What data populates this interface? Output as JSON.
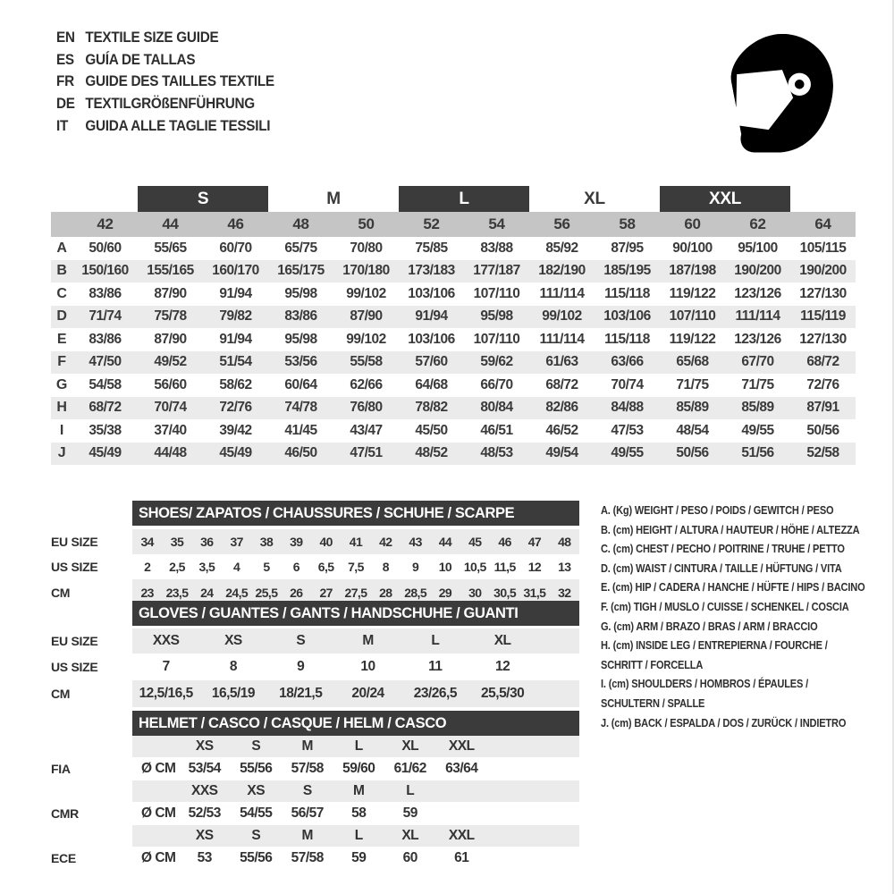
{
  "colors": {
    "bar_dark": "#3b3b3b",
    "column_band": "#c5c5c5",
    "stripe": "#ebebeb",
    "text": "#373737"
  },
  "header": {
    "languages": [
      {
        "code": "EN",
        "title": "TEXTILE SIZE GUIDE"
      },
      {
        "code": "ES",
        "title": "GUÍA DE TALLAS"
      },
      {
        "code": "FR",
        "title": "GUIDE DES TAILLES TEXTILE"
      },
      {
        "code": "DE",
        "title": "TEXTILGRÖßENFÜHRUNG"
      },
      {
        "code": "IT",
        "title": "GUIDA ALLE TAGLIE TESSILI"
      }
    ],
    "icon": "helmet-icon"
  },
  "textile_table": {
    "bands": [
      {
        "label": "S",
        "start": 2,
        "span": 2,
        "boxed": true
      },
      {
        "label": "M",
        "start": 4,
        "span": 2,
        "boxed": false
      },
      {
        "label": "L",
        "start": 6,
        "span": 2,
        "boxed": true
      },
      {
        "label": "XL",
        "start": 8,
        "span": 2,
        "boxed": false
      },
      {
        "label": "XXL",
        "start": 10,
        "span": 2,
        "boxed": true
      }
    ],
    "columns": [
      "42",
      "44",
      "46",
      "48",
      "50",
      "52",
      "54",
      "56",
      "58",
      "60",
      "62",
      "64"
    ],
    "rows": [
      {
        "label": "A",
        "values": [
          "50/60",
          "55/65",
          "60/70",
          "65/75",
          "70/80",
          "75/85",
          "83/88",
          "85/92",
          "87/95",
          "90/100",
          "95/100",
          "105/115"
        ]
      },
      {
        "label": "B",
        "values": [
          "150/160",
          "155/165",
          "160/170",
          "165/175",
          "170/180",
          "173/183",
          "177/187",
          "182/190",
          "185/195",
          "187/198",
          "190/200",
          "190/200"
        ]
      },
      {
        "label": "C",
        "values": [
          "83/86",
          "87/90",
          "91/94",
          "95/98",
          "99/102",
          "103/106",
          "107/110",
          "111/114",
          "115/118",
          "119/122",
          "123/126",
          "127/130"
        ]
      },
      {
        "label": "D",
        "values": [
          "71/74",
          "75/78",
          "79/82",
          "83/86",
          "87/90",
          "91/94",
          "95/98",
          "99/102",
          "103/106",
          "107/110",
          "111/114",
          "115/119"
        ]
      },
      {
        "label": "E",
        "values": [
          "83/86",
          "87/90",
          "91/94",
          "95/98",
          "99/102",
          "103/106",
          "107/110",
          "111/114",
          "115/118",
          "119/122",
          "123/126",
          "127/130"
        ]
      },
      {
        "label": "F",
        "values": [
          "47/50",
          "49/52",
          "51/54",
          "53/56",
          "55/58",
          "57/60",
          "59/62",
          "61/63",
          "63/66",
          "65/68",
          "67/70",
          "68/72"
        ]
      },
      {
        "label": "G",
        "values": [
          "54/58",
          "56/60",
          "58/62",
          "60/64",
          "62/66",
          "64/68",
          "66/70",
          "68/72",
          "70/74",
          "71/75",
          "71/75",
          "72/76"
        ]
      },
      {
        "label": "H",
        "values": [
          "68/72",
          "70/74",
          "72/76",
          "74/78",
          "76/80",
          "78/82",
          "80/84",
          "82/86",
          "84/88",
          "85/89",
          "85/89",
          "87/91"
        ]
      },
      {
        "label": "I",
        "values": [
          "35/38",
          "37/40",
          "39/42",
          "41/45",
          "43/47",
          "45/50",
          "46/51",
          "46/52",
          "47/53",
          "48/54",
          "49/55",
          "50/56"
        ]
      },
      {
        "label": "J",
        "values": [
          "45/49",
          "44/48",
          "45/49",
          "46/50",
          "47/51",
          "48/52",
          "48/53",
          "49/54",
          "49/55",
          "50/56",
          "51/56",
          "52/58"
        ]
      }
    ]
  },
  "shoes_table": {
    "title": "SHOES/ ZAPATOS / CHAUSSURES / SCHUHE / SCARPE",
    "rows": [
      {
        "label": "EU SIZE",
        "striped": true,
        "values": [
          "34",
          "35",
          "36",
          "37",
          "38",
          "39",
          "40",
          "41",
          "42",
          "43",
          "44",
          "45",
          "46",
          "47",
          "48"
        ]
      },
      {
        "label": "US SIZE",
        "striped": false,
        "values": [
          "2",
          "2,5",
          "3,5",
          "4",
          "5",
          "6",
          "6,5",
          "7,5",
          "8",
          "9",
          "10",
          "10,5",
          "11,5",
          "12",
          "13"
        ]
      },
      {
        "label": "CM",
        "striped": true,
        "values": [
          "23",
          "23,5",
          "24",
          "24,5",
          "25,5",
          "26",
          "27",
          "27,5",
          "28",
          "28,5",
          "29",
          "30",
          "30,5",
          "31,5",
          "32"
        ]
      }
    ]
  },
  "gloves_table": {
    "title": "GLOVES / GUANTES / GANTS / HANDSCHUHE / GUANTI",
    "rows": [
      {
        "label": "EU SIZE",
        "striped": true,
        "values": [
          "XXS",
          "XS",
          "S",
          "M",
          "L",
          "XL"
        ]
      },
      {
        "label": "US SIZE",
        "striped": false,
        "values": [
          "7",
          "8",
          "9",
          "10",
          "11",
          "12"
        ]
      },
      {
        "label": "CM",
        "striped": true,
        "values": [
          "12,5/16,5",
          "16,5/19",
          "18/21,5",
          "20/24",
          "23/26,5",
          "25,5/30"
        ]
      }
    ]
  },
  "helmet_table": {
    "title": "HELMET / CASCO / CASQUE / HELM / CASCO",
    "sections": [
      {
        "label": "FIA",
        "unit": "Ø CM",
        "sizes": [
          "XS",
          "S",
          "M",
          "L",
          "XL",
          "XXL"
        ],
        "values": [
          "53/54",
          "55/56",
          "57/58",
          "59/60",
          "61/62",
          "63/64"
        ]
      },
      {
        "label": "CMR",
        "unit": "Ø CM",
        "sizes": [
          "XXS",
          "XS",
          "S",
          "M",
          "L",
          ""
        ],
        "values": [
          "52/53",
          "54/55",
          "56/57",
          "58",
          "59",
          ""
        ]
      },
      {
        "label": "ECE",
        "unit": "Ø CM",
        "sizes": [
          "XS",
          "S",
          "M",
          "L",
          "XL",
          "XXL"
        ],
        "values": [
          "53",
          "55/56",
          "57/58",
          "59",
          "60",
          "61"
        ]
      }
    ]
  },
  "legend": {
    "items": [
      {
        "lines": [
          "A. (Kg) WEIGHT / PESO / POIDS / GEWITCH / PESO"
        ]
      },
      {
        "lines": [
          "B. (cm) HEIGHT / ALTURA / HAUTEUR / HÖHE / ALTEZZA"
        ]
      },
      {
        "lines": [
          "C. (cm) CHEST / PECHO / POITRINE / TRUHE / PETTO"
        ]
      },
      {
        "lines": [
          "D. (cm) WAIST / CINTURA / TAILLE / HÜFTUNG / VITA"
        ]
      },
      {
        "lines": [
          "E. (cm) HIP / CADERA / HANCHE / HÜFTE / HIPS / BACINO"
        ]
      },
      {
        "lines": [
          "F. (cm) TIGH / MUSLO / CUISSE / SCHENKEL / COSCIA"
        ]
      },
      {
        "lines": [
          "G. (cm) ARM / BRAZO / BRAS / ARM / BRACCIO"
        ]
      },
      {
        "lines": [
          "H. (cm) INSIDE LEG / ENTREPIERNA / FOURCHE /",
          "SCHRITT / FORCELLA"
        ]
      },
      {
        "lines": [
          "I. (cm) SHOULDERS / HOMBROS / ÉPAULES /",
          "SCHULTERN / SPALLE"
        ]
      },
      {
        "lines": [
          "J. (cm) BACK / ESPALDA / DOS / ZURÜCK / INDIETRO"
        ]
      }
    ]
  }
}
